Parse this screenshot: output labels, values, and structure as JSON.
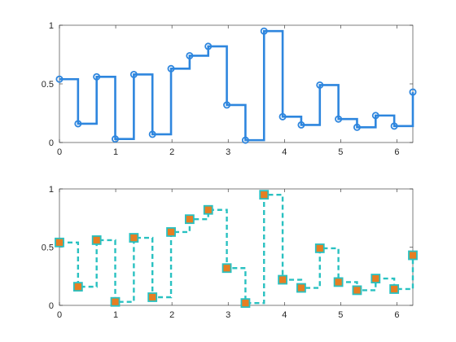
{
  "chart_data": [
    {
      "type": "stairs",
      "title": "",
      "xlabel": "",
      "ylabel": "",
      "xlim": [
        0,
        6.2832
      ],
      "ylim": [
        0,
        1
      ],
      "xticks": [
        0,
        1,
        2,
        3,
        4,
        5,
        6
      ],
      "yticks": [
        0,
        0.5,
        1
      ],
      "xtick_labels": [
        "0",
        "1",
        "2",
        "3",
        "4",
        "5",
        "6"
      ],
      "ytick_labels": [
        "0",
        "0.5",
        "1"
      ],
      "grid": false,
      "series": [
        {
          "style": "solid line, circle markers",
          "color": "#2E86DE",
          "x": [
            0,
            0.3307,
            0.6614,
            0.992,
            1.3227,
            1.6534,
            1.9841,
            2.3148,
            2.6455,
            2.9762,
            3.3069,
            3.6375,
            3.9682,
            4.2989,
            4.6296,
            4.9603,
            5.291,
            5.6217,
            5.9523,
            6.2832
          ],
          "y": [
            0.54,
            0.16,
            0.56,
            0.03,
            0.58,
            0.07,
            0.63,
            0.74,
            0.82,
            0.32,
            0.02,
            0.95,
            0.22,
            0.15,
            0.49,
            0.2,
            0.13,
            0.23,
            0.14,
            0.43
          ]
        }
      ]
    },
    {
      "type": "stairs",
      "title": "",
      "xlabel": "",
      "ylabel": "",
      "xlim": [
        0,
        6.2832
      ],
      "ylim": [
        0,
        1
      ],
      "xticks": [
        0,
        1,
        2,
        3,
        4,
        5,
        6
      ],
      "yticks": [
        0,
        0.5,
        1
      ],
      "xtick_labels": [
        "0",
        "1",
        "2",
        "3",
        "4",
        "5",
        "6"
      ],
      "ytick_labels": [
        "0",
        "0.5",
        "1"
      ],
      "grid": false,
      "series": [
        {
          "style": "dashed line, square markers",
          "color": "#29C1C1",
          "marker_face_color": "#E67E22",
          "x": [
            0,
            0.3307,
            0.6614,
            0.992,
            1.3227,
            1.6534,
            1.9841,
            2.3148,
            2.6455,
            2.9762,
            3.3069,
            3.6375,
            3.9682,
            4.2989,
            4.6296,
            4.9603,
            5.291,
            5.6217,
            5.9523,
            6.2832
          ],
          "y": [
            0.54,
            0.16,
            0.56,
            0.03,
            0.58,
            0.07,
            0.63,
            0.74,
            0.82,
            0.32,
            0.02,
            0.95,
            0.22,
            0.15,
            0.49,
            0.2,
            0.13,
            0.23,
            0.14,
            0.43
          ]
        }
      ]
    }
  ]
}
